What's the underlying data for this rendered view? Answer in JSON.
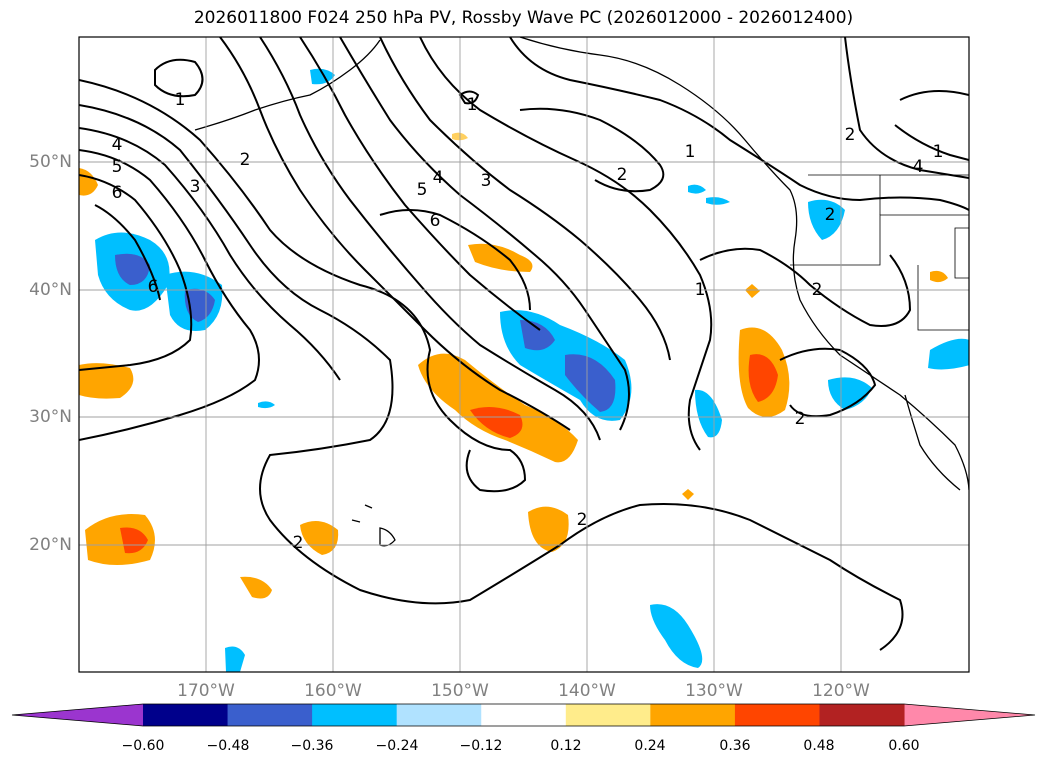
{
  "title": "2026011800 F024 250 hPa PV, Rossby Wave PC (2026012000 - 2026012400)",
  "lat_labels": [
    "50°N",
    "40°N",
    "30°N",
    "20°N"
  ],
  "lon_labels": [
    "170°W",
    "160°W",
    "150°W",
    "140°W",
    "130°W",
    "120°W"
  ],
  "contour_labels": [
    "1",
    "1",
    "1",
    "1",
    "2",
    "2",
    "2",
    "2",
    "2",
    "2",
    "2",
    "3",
    "3",
    "4",
    "4",
    "4",
    "5",
    "5",
    "6",
    "6",
    "6",
    "2",
    "1"
  ],
  "colorbar": {
    "ticks": [
      "−0.60",
      "−0.48",
      "−0.36",
      "−0.24",
      "−0.12",
      "0.12",
      "0.24",
      "0.36",
      "0.48",
      "0.60"
    ],
    "colors": [
      "#9b35cf",
      "#00008b",
      "#3a5fcd",
      "#00bfff",
      "#b0e2ff",
      "#ffffff",
      "#ffec8b",
      "#ffa500",
      "#ff4500",
      "#b22222",
      "#ff88aa"
    ]
  },
  "colors": {
    "contour": "#000000",
    "grid": "#a0a0a0",
    "label": "#808080"
  }
}
